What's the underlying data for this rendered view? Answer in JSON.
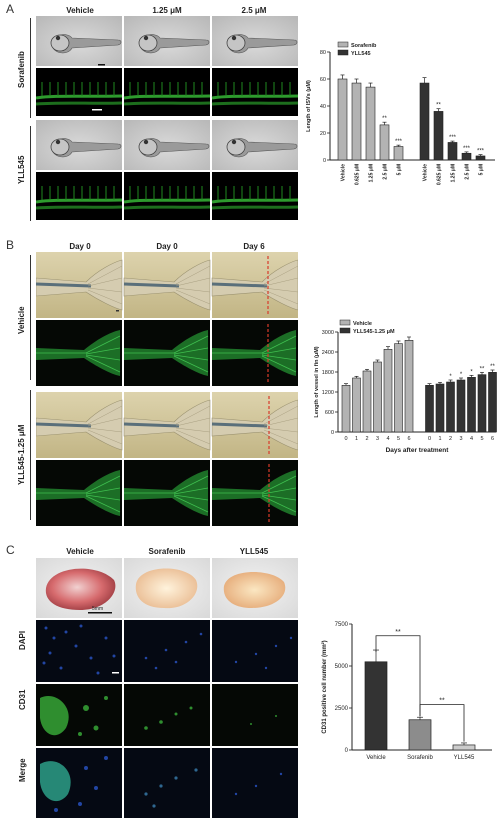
{
  "panels": {
    "a": "A",
    "b": "B",
    "c": "C"
  },
  "panelA": {
    "columns": [
      "Vehicle",
      "1.25 μM",
      "2.5 μM"
    ],
    "rows": [
      "Sorafenib",
      "YLL545"
    ],
    "chart_data": {
      "type": "bar",
      "ylabel": "Length of ISVs (μM)",
      "ylim": [
        0,
        80
      ],
      "yticks": [
        "0",
        "20",
        "40",
        "60",
        "80"
      ],
      "categories": [
        "Vehicle",
        "0.625 μM",
        "1.25 μM",
        "2.5 μM",
        "5 μM"
      ],
      "series": [
        {
          "name": "Sorafenib",
          "values": [
            60,
            57,
            54,
            26,
            10
          ],
          "errors": [
            3,
            3,
            3,
            2,
            1
          ],
          "sig": [
            "",
            "",
            "",
            "**",
            "***"
          ],
          "color": "#b3b3b3"
        },
        {
          "name": "YLL545",
          "values": [
            57,
            36,
            13,
            5,
            3
          ],
          "errors": [
            4,
            2,
            1,
            1,
            1
          ],
          "sig": [
            "",
            "**",
            "***",
            "***",
            "***"
          ],
          "color": "#333333"
        }
      ]
    }
  },
  "panelB": {
    "columns": [
      "Day 0",
      "Day 0",
      "Day 6"
    ],
    "rows": [
      "Vehicle",
      "YLL545-1.25 μM"
    ],
    "chart_data": {
      "type": "bar",
      "ylabel": "Length of vessel in fin (μM)",
      "xlabel": "Days after treatment",
      "ylim": [
        0,
        3000
      ],
      "yticks": [
        "0",
        "600",
        "1200",
        "1800",
        "2400",
        "3000"
      ],
      "categories": [
        "0",
        "1",
        "2",
        "3",
        "4",
        "5",
        "6"
      ],
      "series": [
        {
          "name": "Vehicle",
          "values": [
            1400,
            1620,
            1830,
            2100,
            2480,
            2650,
            2750
          ],
          "errors": [
            50,
            50,
            50,
            60,
            80,
            80,
            100
          ],
          "sig": [
            "",
            "",
            "",
            "",
            "",
            "",
            ""
          ],
          "color": "#b3b3b3"
        },
        {
          "name": "YLL545-1.25 μM",
          "values": [
            1400,
            1440,
            1500,
            1560,
            1640,
            1720,
            1790
          ],
          "errors": [
            50,
            50,
            60,
            60,
            60,
            70,
            70
          ],
          "sig": [
            "",
            "",
            "*",
            "*",
            "*",
            "**",
            "**"
          ],
          "color": "#333333"
        }
      ]
    }
  },
  "panelC": {
    "columns": [
      "Vehicle",
      "Sorafenib",
      "YLL545"
    ],
    "rows": [
      "DAPI",
      "CD31",
      "Merge"
    ],
    "scale": "5mm",
    "chart_data": {
      "type": "bar",
      "ylabel": "CD31 positive cell number (mm²)",
      "ylim": [
        0,
        7500
      ],
      "yticks": [
        "0",
        "2500",
        "5000",
        "7500"
      ],
      "categories": [
        "Vehicle",
        "Sorafenib",
        "YLL545"
      ],
      "values": [
        5250,
        1800,
        300
      ],
      "errors": [
        700,
        150,
        120
      ],
      "colors": [
        "#333333",
        "#8c8c8c",
        "#cccccc"
      ],
      "brackets": [
        {
          "from": 0,
          "to": 1,
          "label": "**"
        },
        {
          "from": 1,
          "to": 2,
          "label": "**"
        }
      ]
    }
  }
}
